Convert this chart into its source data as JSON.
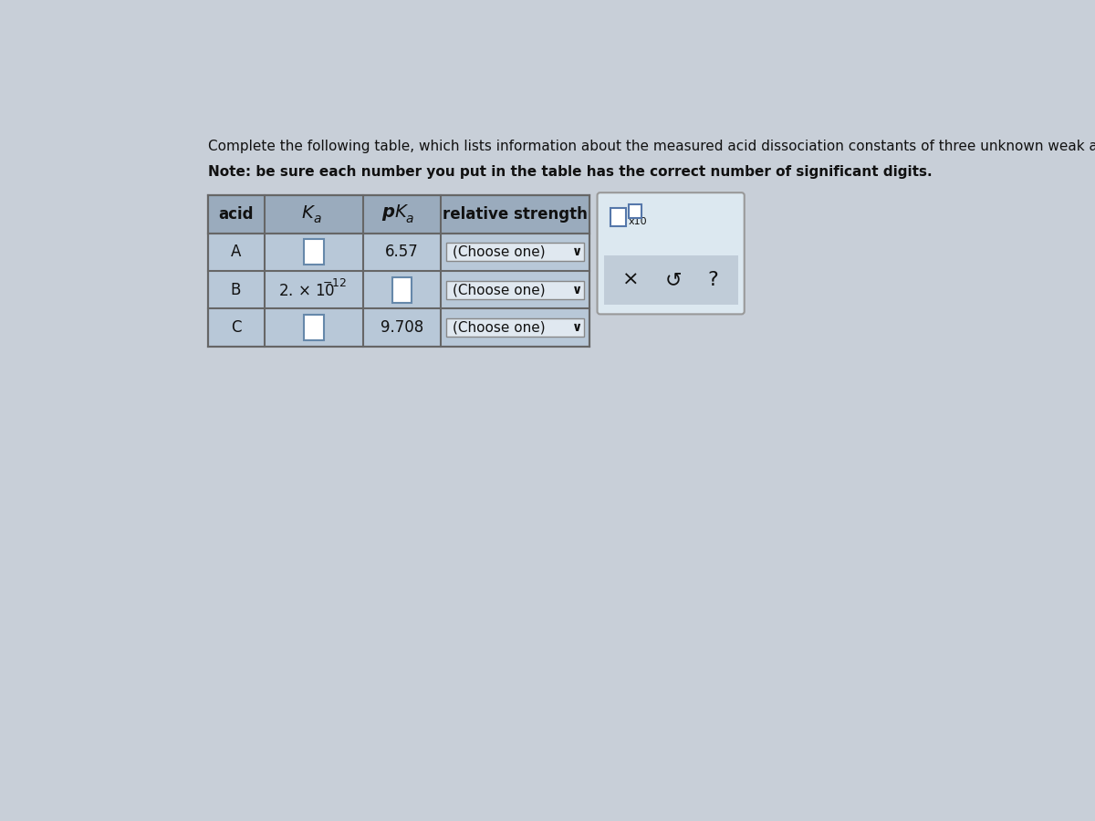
{
  "title_line1": "Complete the following table, which lists information about the measured acid dissociation constants of three unknown weak acids.",
  "title_line2": "Note: be sure each number you put in the table has the correct number of significant digits.",
  "bg_color": "#c8cfd8",
  "table_header_bg": "#9aabbd",
  "table_data_bg": "#b8c8d8",
  "cell_input_bg": "#c8d8e8",
  "cell_white_bg": "#ffffff",
  "dropdown_bg": "#e0e8f0",
  "font_color": "#111111",
  "grid_color": "#666666",
  "title_fontsize": 11.0,
  "note_fontsize": 11.0,
  "header_fontsize": 12,
  "cell_fontsize": 12,
  "popup_bg": "#dce8f0",
  "popup_border": "#999999",
  "rows": [
    {
      "acid": "A",
      "Ka": "",
      "pKa": "6.57",
      "strength": "(Choose one)"
    },
    {
      "acid": "B",
      "Ka": "2. x 10^-12",
      "pKa": "",
      "strength": "(Choose one)"
    },
    {
      "acid": "C",
      "Ka": "",
      "pKa": "9.708",
      "strength": "(Choose one)"
    }
  ]
}
